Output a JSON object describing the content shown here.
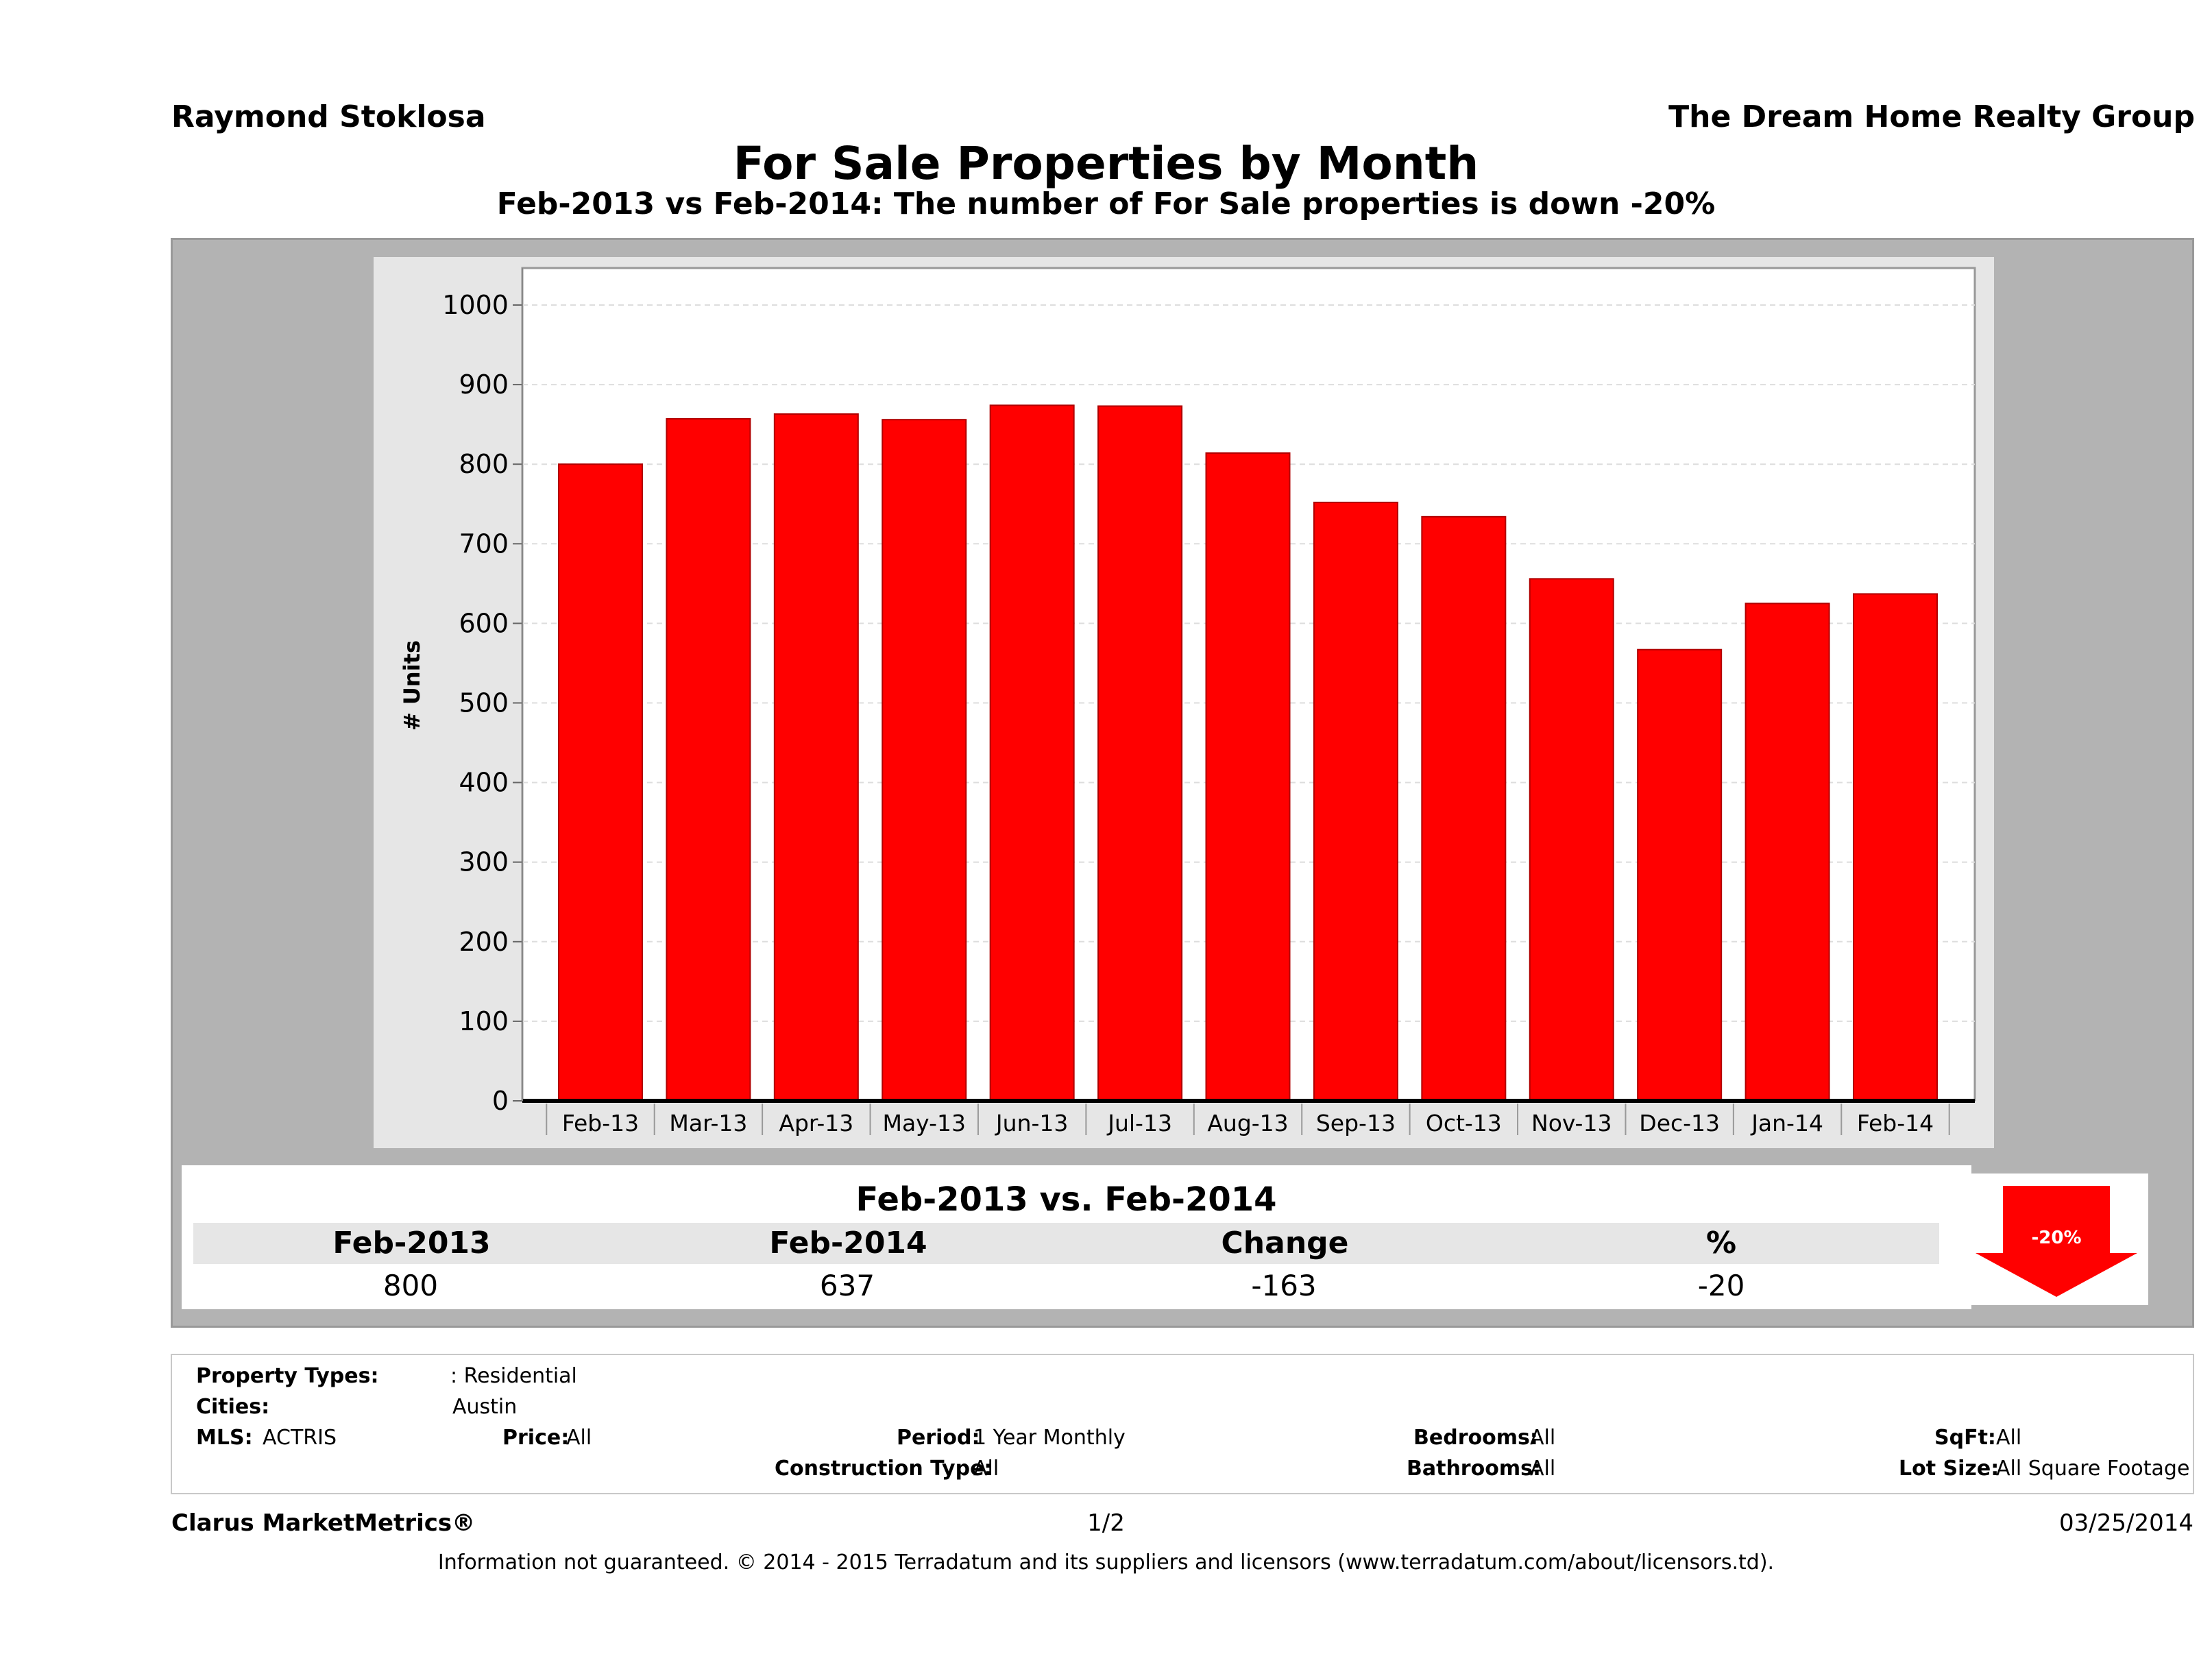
{
  "header": {
    "agent": "Raymond Stoklosa",
    "brokerage": "The Dream Home Realty Group",
    "title": "For Sale Properties by Month",
    "subtitle": "Feb-2013 vs Feb-2014: The number of For Sale  properties is down -20%"
  },
  "chart_data": {
    "type": "bar",
    "categories": [
      "Feb-13",
      "Mar-13",
      "Apr-13",
      "May-13",
      "Jun-13",
      "Jul-13",
      "Aug-13",
      "Sep-13",
      "Oct-13",
      "Nov-13",
      "Dec-13",
      "Jan-14",
      "Feb-14"
    ],
    "values": [
      800,
      857,
      863,
      856,
      874,
      873,
      814,
      752,
      734,
      656,
      567,
      625,
      637
    ],
    "ylabel": "# Units",
    "xlabel": "",
    "ylim": [
      0,
      1000
    ],
    "yticks": [
      "0",
      "100",
      "200",
      "300",
      "400",
      "500",
      "600",
      "700",
      "800",
      "900",
      "1000"
    ],
    "bar_color": "#ff0000",
    "grid": true,
    "legend": "none"
  },
  "summary": {
    "title": "Feb-2013 vs. Feb-2014",
    "headers": [
      "Feb-2013",
      "Feb-2014",
      "Change",
      "%"
    ],
    "values": [
      "800",
      "637",
      "-163",
      "-20"
    ],
    "badge": "-20%",
    "badge_color": "#ff0000"
  },
  "filters": {
    "property_types_label": "Property Types:",
    "property_types_value": ": Residential",
    "cities_label": "Cities:",
    "cities_value": "Austin",
    "mls_label": "MLS:",
    "mls_value": "ACTRIS",
    "price_label": "Price:",
    "price_value": "All",
    "period_label": "Period:",
    "period_value": "1 Year Monthly",
    "bedrooms_label": "Bedrooms:",
    "bedrooms_value": "All",
    "sqft_label": "SqFt:",
    "sqft_value": "All",
    "construction_label": "Construction Type:",
    "construction_value": "All",
    "bathrooms_label": "Bathrooms:",
    "bathrooms_value": "All",
    "lot_label": "Lot Size:",
    "lot_value": "All Square Footage"
  },
  "footer": {
    "brand": "Clarus MarketMetrics®",
    "page": "1/2",
    "date": "03/25/2014",
    "disclaimer": "Information not guaranteed. © 2014 - 2015 Terradatum and its suppliers and licensors (www.terradatum.com/about/licensors.td)."
  }
}
